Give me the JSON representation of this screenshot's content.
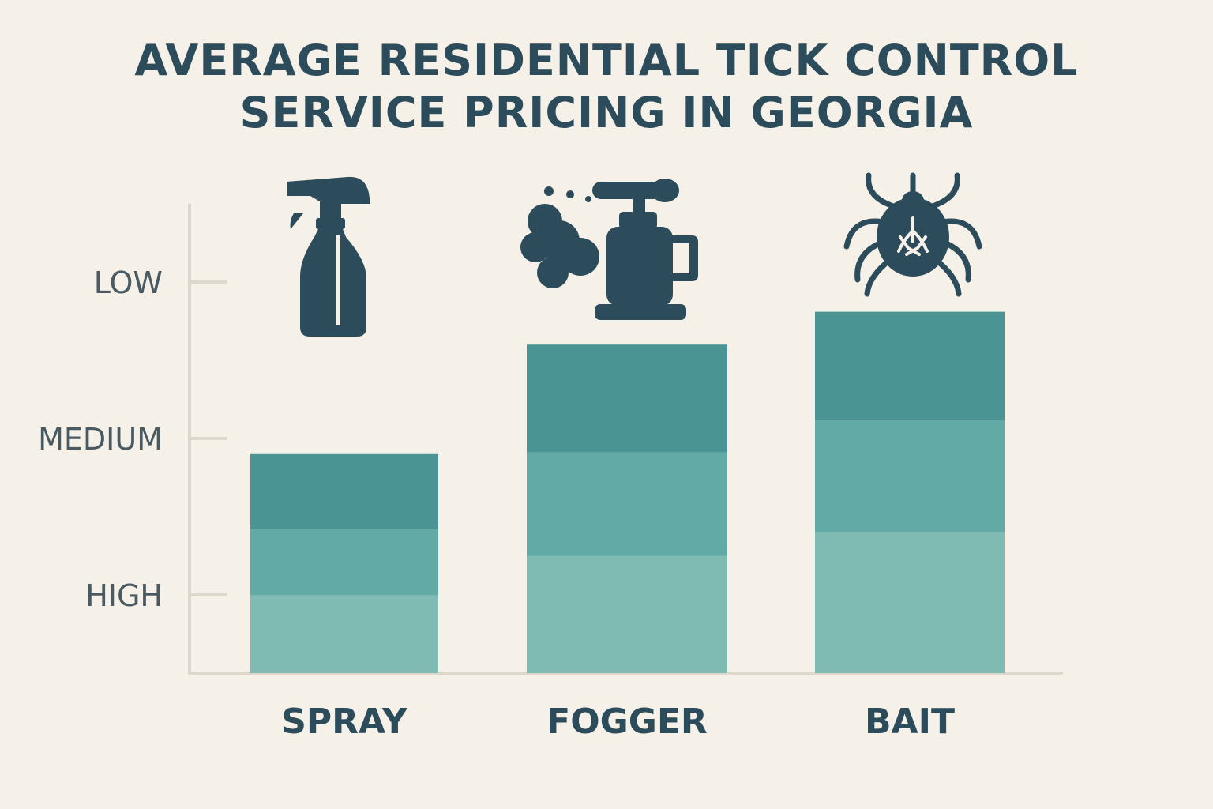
{
  "title": {
    "line1": "AVERAGE RESIDENTIAL TICK CONTROL",
    "line2": "SERVICE PRICING IN GEORGIA"
  },
  "icons": [
    "spray-bottle-icon",
    "fogger-icon",
    "tick-icon"
  ],
  "colors": {
    "background": "#f5f1e8",
    "title": "#2c4b5b",
    "icon": "#2c4b5b",
    "axis": "#ddd8cb",
    "segment_top": "#4a9593",
    "segment_mid": "#61aaa6",
    "segment_bottom": "#7fbab3"
  },
  "chart_data": {
    "type": "bar",
    "stacked": true,
    "title": "AVERAGE RESIDENTIAL TICK CONTROL SERVICE PRICING IN GEORGIA",
    "categories": [
      "SPRAY",
      "FOGGER",
      "BAIT"
    ],
    "y_tick_labels": [
      "LOW",
      "MEDIUM",
      "HIGH"
    ],
    "y_tick_values": [
      2.5,
      1.5,
      0.5
    ],
    "ylim": [
      0,
      3.0
    ],
    "grid": false,
    "legend": "none",
    "series": [
      {
        "values": [
          0.5,
          0.75,
          0.9
        ]
      },
      {
        "values": [
          0.42,
          0.66,
          0.72
        ]
      },
      {
        "values": [
          0.48,
          0.69,
          0.69
        ]
      }
    ]
  }
}
